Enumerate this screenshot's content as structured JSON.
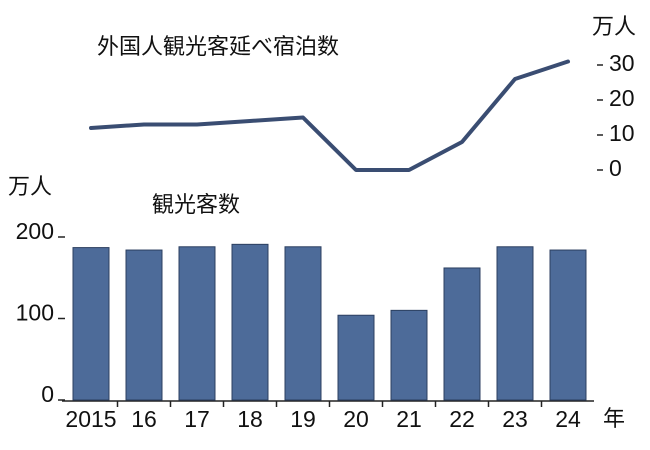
{
  "chart_data": [
    {
      "type": "line",
      "title": "外国人観光客延べ宿泊数",
      "unit": "万人",
      "values": [
        12,
        13,
        13,
        14,
        15,
        0,
        0,
        8,
        26,
        31
      ],
      "color": "#3a4d72",
      "ylim": [
        0,
        30
      ],
      "yticks": [
        0,
        10,
        20,
        30
      ]
    },
    {
      "type": "bar",
      "title": "観光客数",
      "unit": "万人",
      "x_unit": "年",
      "categories": [
        "2015",
        "16",
        "17",
        "18",
        "19",
        "20",
        "21",
        "22",
        "23",
        "24"
      ],
      "values": [
        187,
        184,
        188,
        191,
        188,
        104,
        110,
        162,
        188,
        184
      ],
      "color": "#4d6b99",
      "ylim": [
        0,
        200
      ],
      "yticks": [
        0,
        100,
        200
      ]
    }
  ]
}
